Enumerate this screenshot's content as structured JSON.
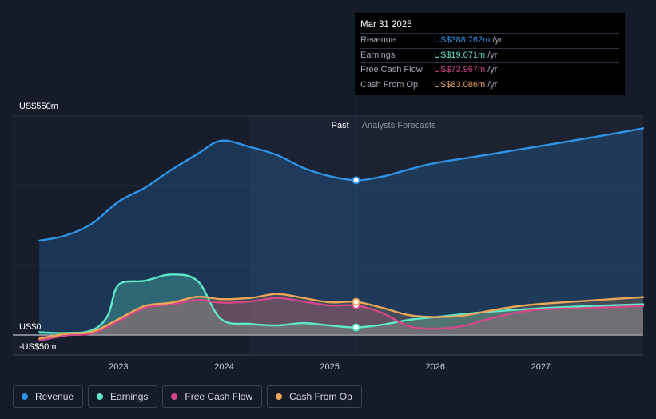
{
  "chart_data": {
    "type": "area",
    "y_axis": {
      "top_label": "US$550m",
      "zero_label": "US$0",
      "bottom_label": "-US$50m",
      "ylim": [
        -50,
        550
      ]
    },
    "x_axis": {
      "ticks": [
        "2023",
        "2024",
        "2025",
        "2026",
        "2027"
      ],
      "xlim": [
        2022.24,
        2027.97
      ]
    },
    "divider": {
      "x": 2025.25,
      "past_label": "Past",
      "forecast_label": "Analysts Forecasts"
    },
    "series": [
      {
        "name": "Revenue",
        "color": "#2e93e6",
        "points": [
          [
            2022.25,
            237
          ],
          [
            2022.5,
            250
          ],
          [
            2022.75,
            280
          ],
          [
            2023.0,
            335
          ],
          [
            2023.25,
            370
          ],
          [
            2023.5,
            415
          ],
          [
            2023.75,
            455
          ],
          [
            2023.97,
            488
          ],
          [
            2024.25,
            472
          ],
          [
            2024.5,
            452
          ],
          [
            2024.75,
            420
          ],
          [
            2025.0,
            399
          ],
          [
            2025.25,
            388.762
          ],
          [
            2025.5,
            398
          ],
          [
            2025.75,
            416
          ],
          [
            2026.0,
            432
          ],
          [
            2026.5,
            453
          ],
          [
            2027.0,
            475
          ],
          [
            2027.5,
            497
          ],
          [
            2027.97,
            519
          ]
        ]
      },
      {
        "name": "Earnings",
        "color": "#5ee8c8",
        "points": [
          [
            2022.25,
            7
          ],
          [
            2022.5,
            5
          ],
          [
            2022.75,
            12
          ],
          [
            2022.9,
            50
          ],
          [
            2023.0,
            126
          ],
          [
            2023.25,
            136
          ],
          [
            2023.5,
            152
          ],
          [
            2023.75,
            135
          ],
          [
            2023.97,
            40
          ],
          [
            2024.25,
            28
          ],
          [
            2024.5,
            24
          ],
          [
            2024.75,
            30
          ],
          [
            2025.0,
            24
          ],
          [
            2025.25,
            19.071
          ],
          [
            2025.5,
            26
          ],
          [
            2025.75,
            38
          ],
          [
            2026.0,
            45
          ],
          [
            2026.5,
            58
          ],
          [
            2027.0,
            67
          ],
          [
            2027.5,
            73
          ],
          [
            2027.97,
            77
          ]
        ]
      },
      {
        "name": "Free Cash Flow",
        "color": "#d4478a",
        "points": [
          [
            2022.25,
            -14
          ],
          [
            2022.5,
            -1
          ],
          [
            2022.75,
            4
          ],
          [
            2023.0,
            35
          ],
          [
            2023.25,
            68
          ],
          [
            2023.5,
            77
          ],
          [
            2023.75,
            88
          ],
          [
            2023.97,
            81
          ],
          [
            2024.25,
            84
          ],
          [
            2024.5,
            93
          ],
          [
            2024.75,
            84
          ],
          [
            2025.0,
            74
          ],
          [
            2025.25,
            73.967
          ],
          [
            2025.5,
            55
          ],
          [
            2025.75,
            22
          ],
          [
            2026.0,
            16
          ],
          [
            2026.25,
            22
          ],
          [
            2026.5,
            40
          ],
          [
            2026.75,
            55
          ],
          [
            2027.0,
            64
          ],
          [
            2027.5,
            68
          ],
          [
            2027.97,
            73
          ]
        ]
      },
      {
        "name": "Cash From Op",
        "color": "#e9a659",
        "points": [
          [
            2022.25,
            -9
          ],
          [
            2022.5,
            3
          ],
          [
            2022.75,
            8
          ],
          [
            2023.0,
            40
          ],
          [
            2023.25,
            73
          ],
          [
            2023.5,
            81
          ],
          [
            2023.75,
            96
          ],
          [
            2023.97,
            90
          ],
          [
            2024.25,
            93
          ],
          [
            2024.5,
            103
          ],
          [
            2024.75,
            93
          ],
          [
            2025.0,
            82
          ],
          [
            2025.25,
            83.086
          ],
          [
            2025.5,
            68
          ],
          [
            2025.75,
            50
          ],
          [
            2026.0,
            45
          ],
          [
            2026.25,
            48
          ],
          [
            2026.5,
            60
          ],
          [
            2026.75,
            71
          ],
          [
            2027.0,
            78
          ],
          [
            2027.5,
            87
          ],
          [
            2027.97,
            95
          ]
        ]
      }
    ]
  },
  "tooltip": {
    "date": "Mar 31 2025",
    "rows": [
      {
        "label": "Revenue",
        "value": "US$388.762m",
        "unit": "/yr",
        "color": "#2e93e6"
      },
      {
        "label": "Earnings",
        "value": "US$19.071m",
        "unit": "/yr",
        "color": "#5ee8c8"
      },
      {
        "label": "Free Cash Flow",
        "value": "US$73.967m",
        "unit": "/yr",
        "color": "#d4478a"
      },
      {
        "label": "Cash From Op",
        "value": "US$83.086m",
        "unit": "/yr",
        "color": "#e9a659"
      }
    ]
  },
  "legend": [
    {
      "label": "Revenue",
      "color": "#2e93e6"
    },
    {
      "label": "Earnings",
      "color": "#5ee8c8"
    },
    {
      "label": "Free Cash Flow",
      "color": "#d4478a"
    },
    {
      "label": "Cash From Op",
      "color": "#e9a659"
    }
  ]
}
